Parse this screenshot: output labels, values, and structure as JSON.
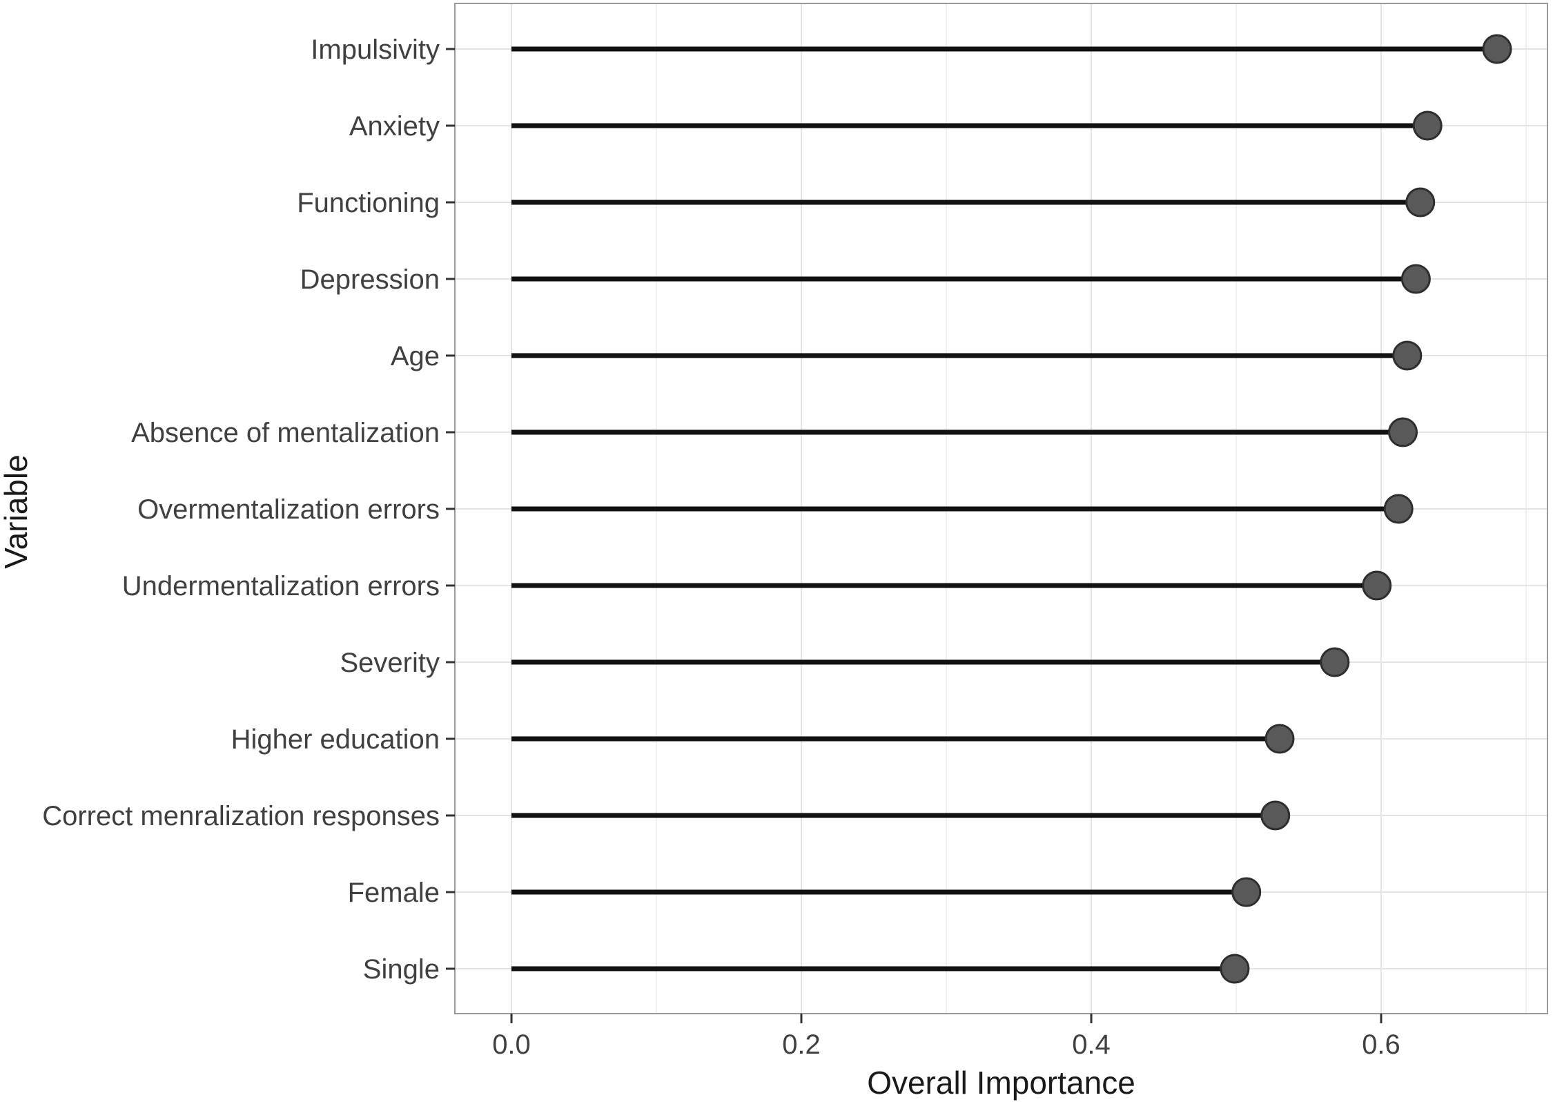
{
  "figure": {
    "background": "#ffffff",
    "description": "Horizontal lollipop chart of variable importance"
  },
  "chart_data": {
    "type": "lollipop",
    "orientation": "horizontal",
    "title": "",
    "xlabel": "Overall Importance",
    "ylabel": "Variable",
    "categories": [
      "Impulsivity",
      "Anxiety",
      "Functioning",
      "Depression",
      "Age",
      "Absence of mentalization",
      "Overmentalization errors",
      "Undermentalization errors",
      "Severity",
      "Higher education",
      "Correct menralization responses",
      "Female",
      "Single"
    ],
    "values": [
      0.68,
      0.632,
      0.627,
      0.624,
      0.618,
      0.615,
      0.612,
      0.597,
      0.568,
      0.53,
      0.527,
      0.507,
      0.499
    ],
    "stem_start": 0.0,
    "x_ticks": [
      0.0,
      0.2,
      0.4,
      0.6
    ],
    "x_tick_labels": [
      "0.0",
      "0.2",
      "0.4",
      "0.6"
    ],
    "x_minor_ticks": [
      0.1,
      0.3,
      0.5,
      0.7
    ],
    "xlim": [
      -0.039,
      0.715
    ],
    "grid": "vertical major+minor, one horizontal gridline per category",
    "legend": "none",
    "colors": {
      "dot_fill": "#595959",
      "dot_stroke": "#2e2e2e",
      "stem": "#111111",
      "grid_major": "#e4e4e4",
      "grid_minor": "#f1f1f1",
      "panel_border": "#999999",
      "tick": "#333333",
      "tick_label": "#404040",
      "axis_title": "#1a1a1a",
      "background": "#ffffff"
    }
  }
}
